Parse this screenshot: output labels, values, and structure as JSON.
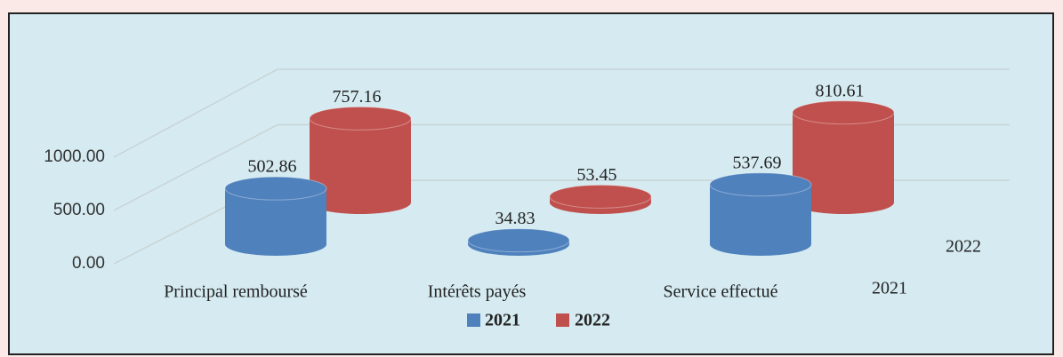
{
  "chart_data": {
    "type": "bar",
    "categories": [
      "Principal remboursé",
      "Intérêts payés",
      "Service effectué"
    ],
    "series": [
      {
        "name": "2021",
        "color": "#4f81bd",
        "values": [
          502.86,
          34.83,
          537.69
        ]
      },
      {
        "name": "2022",
        "color": "#c0504d",
        "values": [
          757.16,
          53.45,
          810.61
        ]
      }
    ],
    "ylim": [
      0,
      1000
    ],
    "yticks": [
      {
        "value": 0,
        "label": "0.00"
      },
      {
        "value": 500,
        "label": "500.00"
      },
      {
        "value": 1000,
        "label": "1000.00"
      }
    ],
    "grid": true,
    "legend": "bottom"
  }
}
